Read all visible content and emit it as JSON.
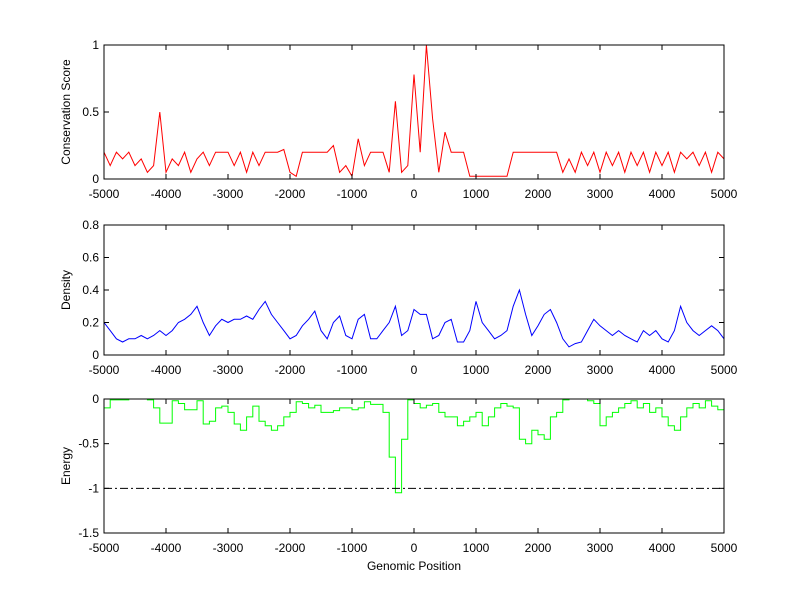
{
  "chart_data": [
    {
      "type": "line",
      "ylabel": "Conservation Score",
      "xlabel": "",
      "xlim": [
        -5000,
        5000
      ],
      "ylim": [
        0,
        1
      ],
      "xticks": [
        -5000,
        -4000,
        -3000,
        -2000,
        -1000,
        0,
        1000,
        2000,
        3000,
        4000,
        5000
      ],
      "yticks": [
        0,
        0.5,
        1
      ],
      "ytick_labels": [
        "0",
        "0.5",
        "1"
      ],
      "color": "#ff0000",
      "x_step": 100,
      "values": [
        0.2,
        0.1,
        0.2,
        0.15,
        0.2,
        0.1,
        0.15,
        0.05,
        0.1,
        0.5,
        0.05,
        0.15,
        0.1,
        0.2,
        0.05,
        0.15,
        0.2,
        0.1,
        0.2,
        0.2,
        0.2,
        0.1,
        0.2,
        0.05,
        0.2,
        0.1,
        0.2,
        0.2,
        0.2,
        0.22,
        0.05,
        0.02,
        0.2,
        0.2,
        0.2,
        0.2,
        0.2,
        0.25,
        0.05,
        0.1,
        0.02,
        0.3,
        0.1,
        0.2,
        0.2,
        0.2,
        0.05,
        0.58,
        0.05,
        0.1,
        0.78,
        0.2,
        1.0,
        0.45,
        0.05,
        0.35,
        0.2,
        0.2,
        0.2,
        0.02,
        0.02,
        0.02,
        0.02,
        0.02,
        0.02,
        0.02,
        0.2,
        0.2,
        0.2,
        0.2,
        0.2,
        0.2,
        0.2,
        0.2,
        0.05,
        0.15,
        0.05,
        0.2,
        0.1,
        0.2,
        0.05,
        0.2,
        0.1,
        0.2,
        0.05,
        0.2,
        0.1,
        0.2,
        0.05,
        0.2,
        0.1,
        0.2,
        0.05,
        0.2,
        0.15,
        0.2,
        0.1,
        0.2,
        0.05,
        0.2,
        0.15
      ]
    },
    {
      "type": "line",
      "ylabel": "Density",
      "xlabel": "",
      "xlim": [
        -5000,
        5000
      ],
      "ylim": [
        0,
        0.8
      ],
      "xticks": [
        -5000,
        -4000,
        -3000,
        -2000,
        -1000,
        0,
        1000,
        2000,
        3000,
        4000,
        5000
      ],
      "yticks": [
        0,
        0.2,
        0.4,
        0.6,
        0.8
      ],
      "ytick_labels": [
        "0",
        "0.2",
        "0.4",
        "0.6",
        "0.8"
      ],
      "color": "#0000ff",
      "x_step": 100,
      "values": [
        0.2,
        0.15,
        0.1,
        0.08,
        0.1,
        0.1,
        0.12,
        0.1,
        0.12,
        0.15,
        0.12,
        0.15,
        0.2,
        0.22,
        0.25,
        0.3,
        0.2,
        0.12,
        0.18,
        0.22,
        0.2,
        0.22,
        0.22,
        0.24,
        0.22,
        0.28,
        0.33,
        0.25,
        0.2,
        0.15,
        0.1,
        0.12,
        0.18,
        0.22,
        0.27,
        0.15,
        0.1,
        0.2,
        0.24,
        0.12,
        0.1,
        0.22,
        0.25,
        0.1,
        0.1,
        0.15,
        0.2,
        0.3,
        0.12,
        0.15,
        0.28,
        0.25,
        0.25,
        0.1,
        0.12,
        0.2,
        0.22,
        0.08,
        0.08,
        0.15,
        0.33,
        0.2,
        0.15,
        0.1,
        0.12,
        0.15,
        0.3,
        0.4,
        0.25,
        0.12,
        0.18,
        0.25,
        0.28,
        0.2,
        0.1,
        0.05,
        0.07,
        0.08,
        0.15,
        0.22,
        0.18,
        0.15,
        0.12,
        0.15,
        0.12,
        0.1,
        0.08,
        0.15,
        0.12,
        0.15,
        0.1,
        0.08,
        0.15,
        0.3,
        0.2,
        0.15,
        0.12,
        0.15,
        0.18,
        0.15,
        0.1
      ]
    },
    {
      "type": "line",
      "ylabel": "Energy",
      "xlabel": "Genomic Position",
      "xlim": [
        -5000,
        5000
      ],
      "ylim": [
        -1.5,
        0
      ],
      "xticks": [
        -5000,
        -4000,
        -3000,
        -2000,
        -1000,
        0,
        1000,
        2000,
        3000,
        4000,
        5000
      ],
      "yticks": [
        -1.5,
        -1,
        -0.5,
        0
      ],
      "ytick_labels": [
        "-1.5",
        "-1",
        "-0.5",
        "0"
      ],
      "color": "#00ff00",
      "threshold": -1,
      "threshold_style": "dash-dot",
      "x_step": 100,
      "values": [
        -0.1,
        -0.01,
        -0.01,
        -0.01,
        0,
        0,
        0,
        -0.01,
        -0.1,
        -0.27,
        -0.27,
        -0.02,
        -0.05,
        -0.12,
        -0.12,
        -0.02,
        -0.28,
        -0.25,
        -0.1,
        -0.08,
        -0.15,
        -0.28,
        -0.35,
        -0.2,
        -0.08,
        -0.25,
        -0.3,
        -0.35,
        -0.3,
        -0.2,
        -0.15,
        -0.03,
        -0.05,
        -0.1,
        -0.07,
        -0.15,
        -0.15,
        -0.13,
        -0.1,
        -0.1,
        -0.12,
        -0.1,
        -0.03,
        -0.06,
        -0.06,
        -0.15,
        -0.65,
        -1.05,
        -0.45,
        -0.01,
        -0.05,
        -0.1,
        -0.07,
        -0.05,
        -0.15,
        -0.2,
        -0.2,
        -0.3,
        -0.25,
        -0.2,
        -0.15,
        -0.3,
        -0.2,
        -0.1,
        -0.05,
        -0.08,
        -0.1,
        -0.45,
        -0.5,
        -0.35,
        -0.4,
        -0.45,
        -0.2,
        -0.15,
        -0.01,
        0,
        0,
        0,
        -0.02,
        -0.05,
        -0.3,
        -0.2,
        -0.15,
        -0.1,
        -0.05,
        -0.02,
        -0.1,
        -0.05,
        -0.15,
        -0.1,
        -0.2,
        -0.3,
        -0.35,
        -0.2,
        -0.1,
        -0.05,
        -0.1,
        -0.02,
        -0.08,
        -0.12,
        -0.15
      ]
    }
  ]
}
